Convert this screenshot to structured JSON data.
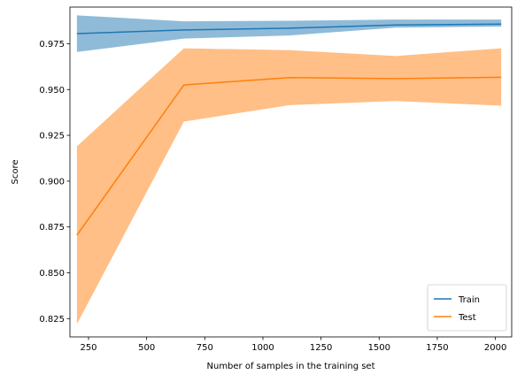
{
  "chart_data": {
    "type": "line",
    "title": "",
    "xlabel": "Number of samples in the training set",
    "ylabel": "Score",
    "xlim": [
      170,
      2070
    ],
    "ylim": [
      0.815,
      0.995
    ],
    "xticks": [
      250,
      500,
      750,
      1000,
      1250,
      1500,
      1750,
      2000
    ],
    "yticks": [
      0.825,
      0.85,
      0.875,
      0.9,
      0.925,
      0.95,
      0.975
    ],
    "ytick_labels": [
      "0.825",
      "0.850",
      "0.875",
      "0.900",
      "0.925",
      "0.950",
      "0.975"
    ],
    "grid": false,
    "legend_position": "lower-right",
    "x": [
      200,
      660,
      1115,
      1570,
      2025
    ],
    "series": [
      {
        "name": "Train",
        "color": "#1f77b4",
        "band_color": "#1f77b4",
        "values": [
          0.9805,
          0.9825,
          0.9835,
          0.9852,
          0.9857
        ],
        "lower": [
          0.9705,
          0.9778,
          0.9795,
          0.9838,
          0.9843
        ],
        "upper": [
          0.9905,
          0.9872,
          0.9875,
          0.9882,
          0.9882
        ]
      },
      {
        "name": "Test",
        "color": "#ff7f0e",
        "band_color": "#ff7f0e",
        "values": [
          0.8705,
          0.9525,
          0.9565,
          0.956,
          0.9567
        ],
        "lower": [
          0.822,
          0.9325,
          0.9415,
          0.9437,
          0.9412
        ],
        "upper": [
          0.919,
          0.9725,
          0.9715,
          0.9683,
          0.9725
        ]
      }
    ]
  }
}
